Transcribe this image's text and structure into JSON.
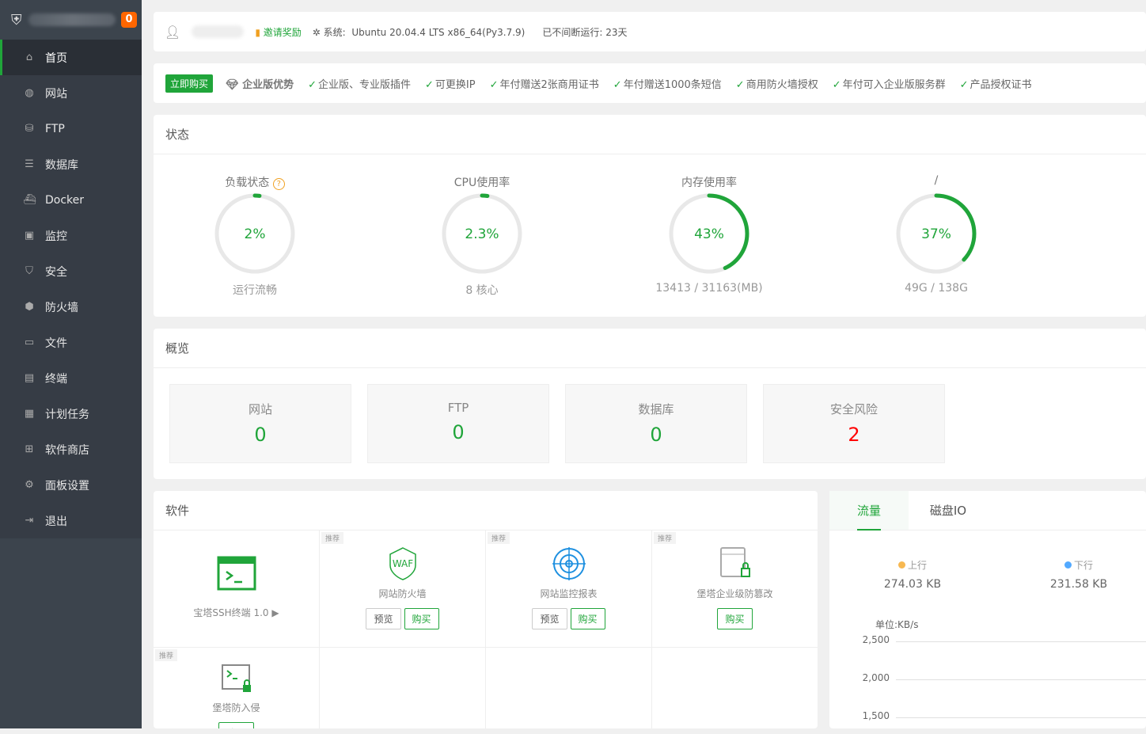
{
  "sidebar": {
    "badge": "0",
    "items": [
      {
        "label": "首页",
        "icon": "home-icon"
      },
      {
        "label": "网站",
        "icon": "globe-icon"
      },
      {
        "label": "FTP",
        "icon": "ftp-icon"
      },
      {
        "label": "数据库",
        "icon": "database-icon"
      },
      {
        "label": "Docker",
        "icon": "docker-icon"
      },
      {
        "label": "监控",
        "icon": "monitor-icon"
      },
      {
        "label": "安全",
        "icon": "shield-icon"
      },
      {
        "label": "防火墙",
        "icon": "firewall-icon"
      },
      {
        "label": "文件",
        "icon": "folder-icon"
      },
      {
        "label": "终端",
        "icon": "terminal-icon"
      },
      {
        "label": "计划任务",
        "icon": "calendar-icon"
      },
      {
        "label": "软件商店",
        "icon": "grid-icon"
      },
      {
        "label": "面板设置",
        "icon": "gear-icon"
      },
      {
        "label": "退出",
        "icon": "logout-icon"
      }
    ]
  },
  "topbar": {
    "invite": "邀请奖励",
    "system_label": "系统:",
    "system": "Ubuntu 20.04.4 LTS x86_64(Py3.7.9)",
    "uptime": "已不间断运行: 23天"
  },
  "buybar": {
    "buy": "立即购买",
    "advantage": "企业版优势",
    "features": [
      "企业版、专业版插件",
      "可更换IP",
      "年付赠送2张商用证书",
      "年付赠送1000条短信",
      "商用防火墙授权",
      "年付可入企业版服务群",
      "产品授权证书"
    ]
  },
  "status": {
    "title": "状态",
    "gauges": [
      {
        "title": "负载状态",
        "value": "2%",
        "percent": 2,
        "sub": "运行流畅"
      },
      {
        "title": "CPU使用率",
        "value": "2.3%",
        "percent": 2.3,
        "sub": "8 核心"
      },
      {
        "title": "内存使用率",
        "value": "43%",
        "percent": 43,
        "sub": "13413 / 31163(MB)"
      },
      {
        "title": "/",
        "value": "37%",
        "percent": 37,
        "sub": "49G / 138G"
      }
    ]
  },
  "overview": {
    "title": "概览",
    "items": [
      {
        "label": "网站",
        "value": "0"
      },
      {
        "label": "FTP",
        "value": "0"
      },
      {
        "label": "数据库",
        "value": "0"
      },
      {
        "label": "安全风险",
        "value": "2"
      }
    ]
  },
  "software": {
    "title": "软件",
    "recommend": "推荐",
    "preview": "预览",
    "buy": "购买",
    "items": [
      {
        "name": "宝塔SSH终端 1.0 ▶"
      },
      {
        "name": "网站防火墙"
      },
      {
        "name": "网站监控报表"
      },
      {
        "name": "堡塔企业级防篡改"
      },
      {
        "name": "堡塔防入侵"
      }
    ]
  },
  "traffic": {
    "tabs": [
      "流量",
      "磁盘IO"
    ],
    "up_label": "上行",
    "up": "274.03 KB",
    "down_label": "下行",
    "down": "231.58 KB",
    "unit": "单位:KB/s",
    "yticks": [
      "2,500",
      "2,000",
      "1,500"
    ],
    "colors": {
      "up": "#f7b851",
      "down": "#52a9ff"
    }
  },
  "colors": {
    "accent": "#20a53a",
    "danger": "#ff0000"
  }
}
